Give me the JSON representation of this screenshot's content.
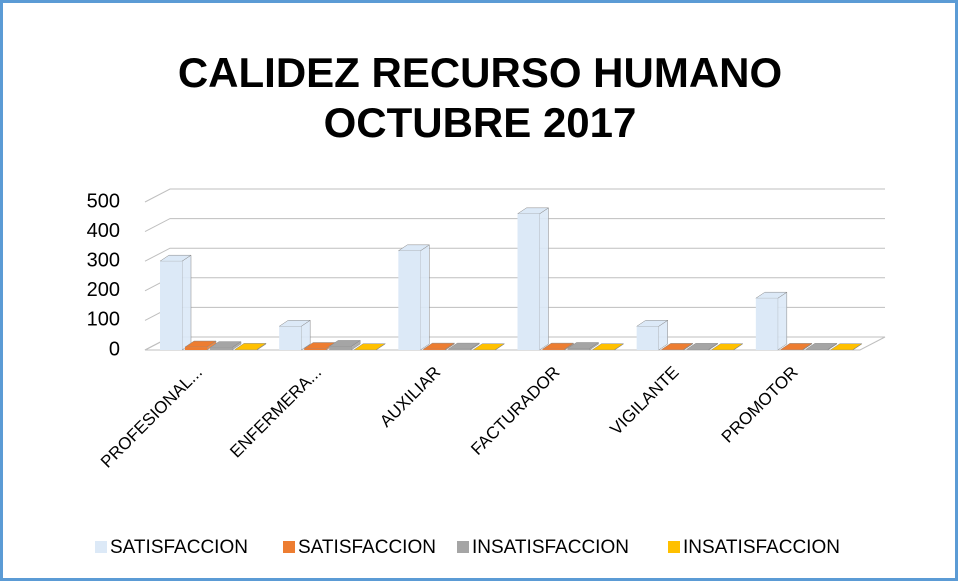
{
  "chart_data": {
    "type": "bar3d",
    "title": [
      "CALIDEZ RECURSO HUMANO",
      "OCTUBRE 2017"
    ],
    "categories": [
      "PROFESIONAL...",
      "ENFERMERA...",
      "AUXILIAR",
      "FACTURADOR",
      "VIGILANTE",
      "PROMOTOR"
    ],
    "series": [
      {
        "name": "SATISFACCION",
        "color": "#dce9f7",
        "values": [
          300,
          80,
          335,
          460,
          80,
          175
        ]
      },
      {
        "name": "SATISFACCION",
        "color": "#ed7d31",
        "values": [
          10,
          5,
          3,
          3,
          2,
          2
        ]
      },
      {
        "name": "INSATISFACCION",
        "color": "#a5a5a5",
        "values": [
          8,
          12,
          3,
          5,
          2,
          2
        ]
      },
      {
        "name": "INSATISFACCION",
        "color": "#ffc000",
        "values": [
          2,
          1,
          1,
          1,
          1,
          1
        ]
      }
    ],
    "ylim": [
      0,
      500
    ],
    "yticks": [
      0,
      100,
      200,
      300,
      400,
      500
    ],
    "grid": true,
    "legend": "bottom"
  }
}
